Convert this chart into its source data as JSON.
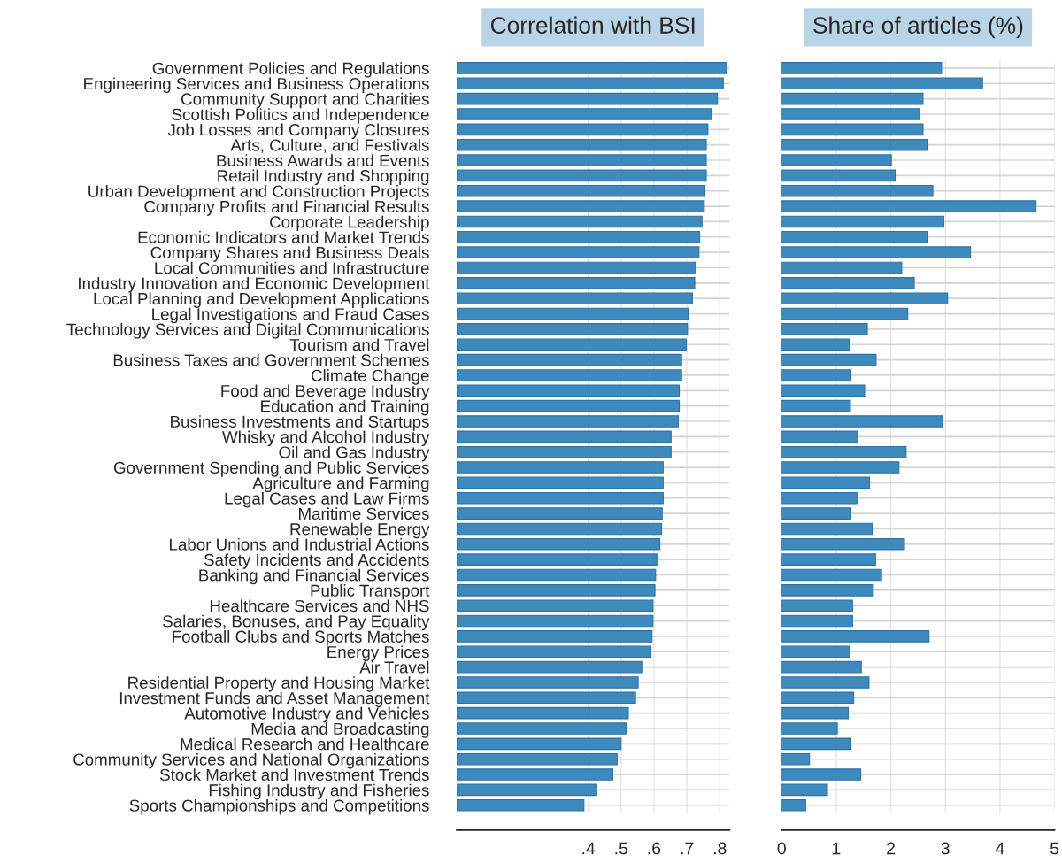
{
  "chart_data": [
    {
      "type": "bar",
      "orientation": "horizontal",
      "title": "Correlation with BSI",
      "categories": [
        "Government Policies and Regulations",
        "Engineering Services and Business Operations",
        "Community Support and Charities",
        "Scottish Politics and Independence",
        "Job Losses and Company Closures",
        "Arts, Culture, and Festivals",
        "Business Awards and Events",
        "Retail Industry and Shopping",
        "Urban Development and Construction Projects",
        "Company Profits and Financial Results",
        "Corporate Leadership",
        "Economic Indicators and Market Trends",
        "Company Shares and Business Deals",
        "Local Communities and Infrastructure",
        "Industry Innovation and Economic Development",
        "Local Planning and Development Applications",
        "Legal Investigations and Fraud Cases",
        "Technology Services and Digital Communications",
        "Tourism and Travel",
        "Business Taxes and Government Schemes",
        "Climate Change",
        "Food and Beverage Industry",
        "Education and Training",
        "Business Investments and Startups",
        "Whisky and Alcohol Industry",
        "Oil and Gas Industry",
        "Government Spending and Public Services",
        "Agriculture and Farming",
        "Legal Cases and Law Firms",
        "Maritime Services",
        "Renewable Energy",
        "Labor Unions and Industrial Actions",
        "Safety Incidents and Accidents",
        "Banking and Financial Services",
        "Public Transport",
        "Healthcare Services and NHS",
        "Salaries, Bonuses, and Pay Equality",
        "Football Clubs and Sports Matches",
        "Energy Prices",
        "Air Travel",
        "Residential Property and Housing Market",
        "Investment Funds and Asset Management",
        "Automotive Industry and Vehicles",
        "Media and Broadcasting",
        "Medical Research and Healthcare",
        "Community Services and National Organizations",
        "Stock Market and Investment Trends",
        "Fishing Industry and Fisheries",
        "Sports Championships and Competitions"
      ],
      "values": [
        0.82,
        0.811,
        0.793,
        0.775,
        0.764,
        0.759,
        0.759,
        0.759,
        0.755,
        0.753,
        0.746,
        0.739,
        0.737,
        0.727,
        0.724,
        0.717,
        0.704,
        0.702,
        0.698,
        0.684,
        0.684,
        0.677,
        0.677,
        0.674,
        0.652,
        0.652,
        0.628,
        0.628,
        0.628,
        0.625,
        0.623,
        0.618,
        0.609,
        0.605,
        0.603,
        0.597,
        0.597,
        0.594,
        0.591,
        0.563,
        0.552,
        0.544,
        0.522,
        0.515,
        0.5,
        0.488,
        0.475,
        0.426,
        0.387
      ],
      "color": "#3f8abd",
      "xlim": [
        0,
        0.83
      ],
      "xticks": [
        {
          "value": 0.4,
          "label": ".4"
        },
        {
          "value": 0.5,
          "label": ".5"
        },
        {
          "value": 0.6,
          "label": ".6"
        },
        {
          "value": 0.7,
          "label": ".7"
        },
        {
          "value": 0.8,
          "label": ".8"
        }
      ],
      "grid": true
    },
    {
      "type": "bar",
      "orientation": "horizontal",
      "title": "Share of articles (%)",
      "categories": [
        null,
        null,
        null,
        null,
        null,
        null,
        null,
        null,
        null,
        null,
        null,
        null,
        null,
        null,
        null,
        null,
        null,
        null,
        null,
        null,
        null,
        null,
        null,
        null,
        null,
        null,
        null,
        null,
        null,
        null,
        null,
        null,
        null,
        null,
        null,
        null,
        null,
        null,
        null,
        null,
        null,
        null,
        null,
        null,
        null,
        null,
        null,
        null,
        null
      ],
      "values": [
        2.93,
        3.68,
        2.59,
        2.53,
        2.59,
        2.68,
        2.01,
        2.08,
        2.77,
        4.66,
        2.97,
        2.68,
        3.46,
        2.2,
        2.43,
        3.04,
        2.31,
        1.57,
        1.24,
        1.73,
        1.27,
        1.52,
        1.26,
        2.95,
        1.38,
        2.28,
        2.15,
        1.61,
        1.38,
        1.27,
        1.66,
        2.25,
        1.72,
        1.83,
        1.68,
        1.3,
        1.3,
        2.7,
        1.24,
        1.46,
        1.6,
        1.32,
        1.22,
        1.02,
        1.27,
        0.51,
        1.45,
        0.84,
        0.44
      ],
      "color": "#3f8abd",
      "xlim": [
        0,
        5
      ],
      "xticks": [
        0,
        1,
        2,
        3,
        4,
        5
      ],
      "grid": true,
      "tick_labels": "x"
    }
  ]
}
